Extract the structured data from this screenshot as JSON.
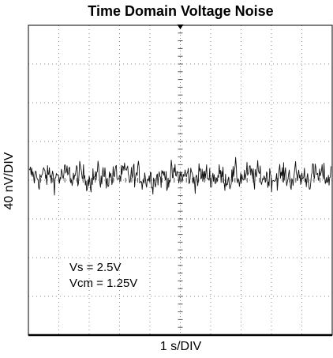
{
  "chart_data": {
    "type": "line",
    "title": "Time Domain Voltage Noise",
    "ylabel": "40 nV/DIV",
    "xlabel": "1 s/DIV",
    "x_divisions": 10,
    "y_divisions": 8,
    "xlim": [
      0,
      10
    ],
    "ylim": [
      -4,
      4
    ],
    "x_unit": "s",
    "y_unit": "div (40 nV/div)",
    "grid": "dotted",
    "trace_center_div": 0.1,
    "trace_peak_to_peak_div": 2.0,
    "annotations": [
      "Vs = 2.5V",
      "Vcm = 1.25V"
    ],
    "colors": {
      "trace": "#111111",
      "grid": "#888888",
      "axis": "#000000"
    }
  }
}
